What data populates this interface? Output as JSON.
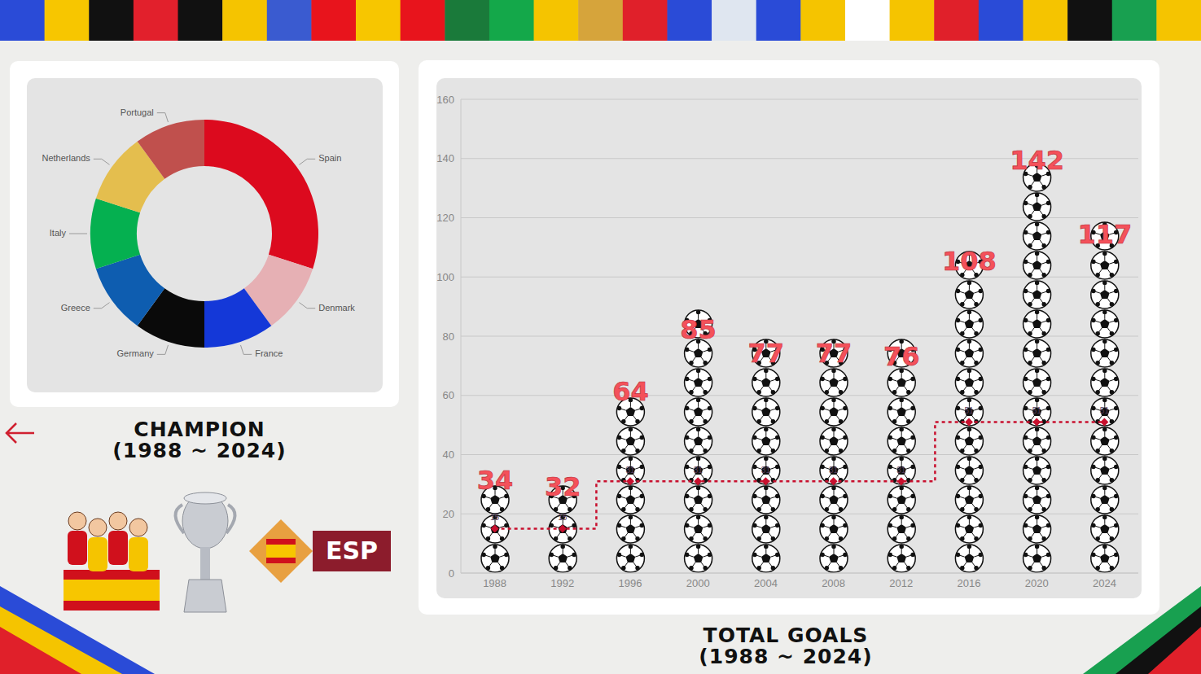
{
  "chart_data": [
    {
      "type": "donut",
      "title": "CHAMPION",
      "subtitle": "(1988 ~ 2024)",
      "categories": [
        "Spain",
        "Denmark",
        "France",
        "Germany",
        "Greece",
        "Italy",
        "Netherlands",
        "Portugal"
      ],
      "values": [
        3,
        1,
        1,
        1,
        1,
        1,
        1,
        1
      ],
      "colors": [
        "#dc0a1e",
        "#e6b0b4",
        "#1438d8",
        "#0a0a0a",
        "#0e5db0",
        "#05b050",
        "#e4be4e",
        "#c0504d"
      ]
    },
    {
      "type": "bar",
      "title": "TOTAL GOALS",
      "subtitle": "(1988 ~ 2024)",
      "categories": [
        "1988",
        "1992",
        "1996",
        "2000",
        "2004",
        "2008",
        "2012",
        "2016",
        "2020",
        "2024"
      ],
      "series": [
        {
          "type": "bar",
          "values": [
            34,
            32,
            64,
            85,
            77,
            77,
            76,
            108,
            142,
            117
          ],
          "color": "#ffffff",
          "data_labels": true
        },
        {
          "type": "line",
          "values": [
            15,
            15,
            31,
            31,
            31,
            31,
            31,
            51,
            51,
            51
          ],
          "color": "#c8102e",
          "line_style": "dotted",
          "marker": "diamond",
          "data_labels": true
        }
      ],
      "ylim": [
        0,
        160
      ],
      "yticks": [
        0,
        20,
        40,
        60,
        80,
        100,
        120,
        140,
        160
      ],
      "grid": true
    }
  ],
  "badge": "ESP"
}
